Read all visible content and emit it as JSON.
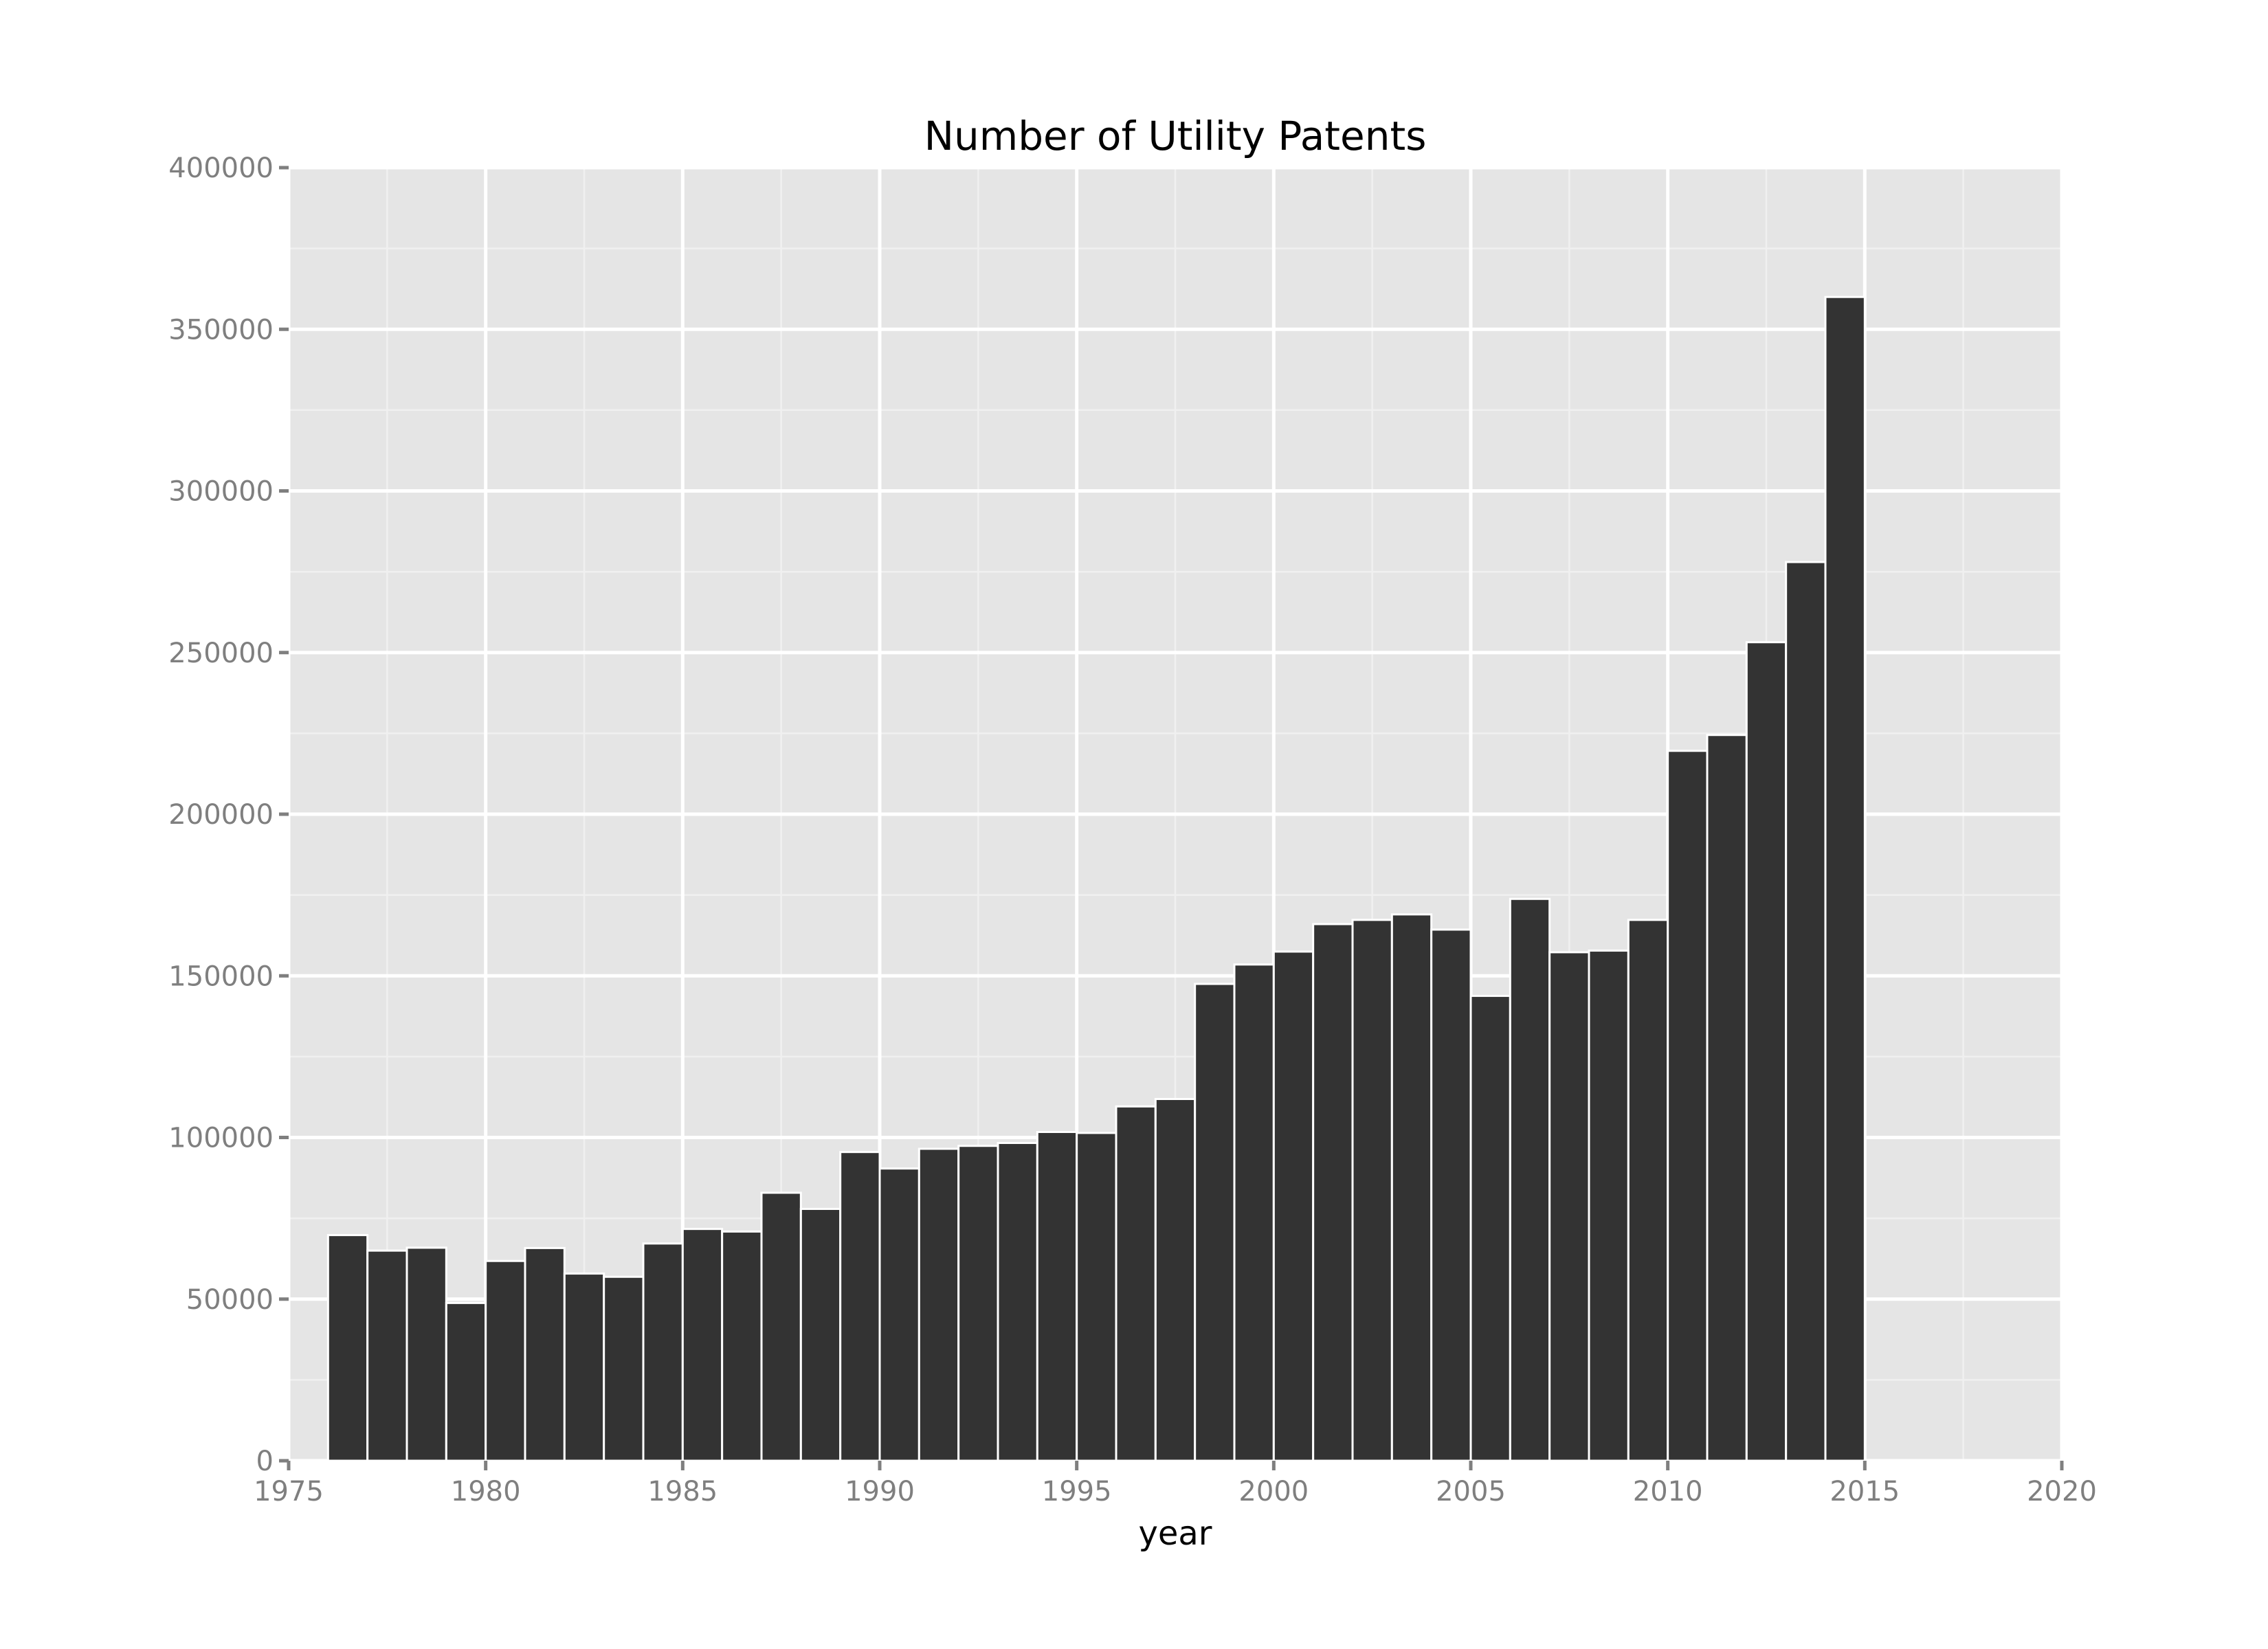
{
  "chart_data": {
    "type": "bar",
    "title": "Number of Utility Patents",
    "xlabel": "year",
    "ylabel": "",
    "xlim": [
      1975,
      2020
    ],
    "ylim": [
      0,
      400000
    ],
    "x_ticks": [
      "1975",
      "1980",
      "1985",
      "1990",
      "1995",
      "2000",
      "2005",
      "2010",
      "2015",
      "2020"
    ],
    "y_ticks": [
      "0",
      "50000",
      "100000",
      "150000",
      "200000",
      "250000",
      "300000",
      "350000",
      "400000"
    ],
    "x_tick_values": [
      1975,
      1980,
      1985,
      1990,
      1995,
      2000,
      2005,
      2010,
      2015,
      2020
    ],
    "y_tick_values": [
      0,
      50000,
      100000,
      150000,
      200000,
      250000,
      300000,
      350000,
      400000
    ],
    "grid": true,
    "bar_color": "#333333",
    "panel_color": "#e5e5e5",
    "categories": [
      1976,
      1977,
      1978,
      1979,
      1980,
      1981,
      1982,
      1983,
      1984,
      1985,
      1986,
      1987,
      1988,
      1989,
      1990,
      1991,
      1992,
      1993,
      1994,
      1995,
      1996,
      1997,
      1998,
      1999,
      2000,
      2001,
      2002,
      2003,
      2004,
      2005,
      2006,
      2007,
      2008,
      2009,
      2010,
      2011,
      2012,
      2013,
      2014
    ],
    "values": [
      69800,
      65000,
      65900,
      48800,
      61800,
      65800,
      57900,
      56900,
      67200,
      71700,
      70900,
      82900,
      77900,
      95500,
      90400,
      96500,
      97400,
      98300,
      101700,
      101400,
      109600,
      111900,
      147500,
      153500,
      157500,
      166000,
      167300,
      169000,
      164300,
      143800,
      173800,
      157300,
      157800,
      167300,
      219600,
      224500,
      253200,
      278000,
      360000
    ]
  }
}
